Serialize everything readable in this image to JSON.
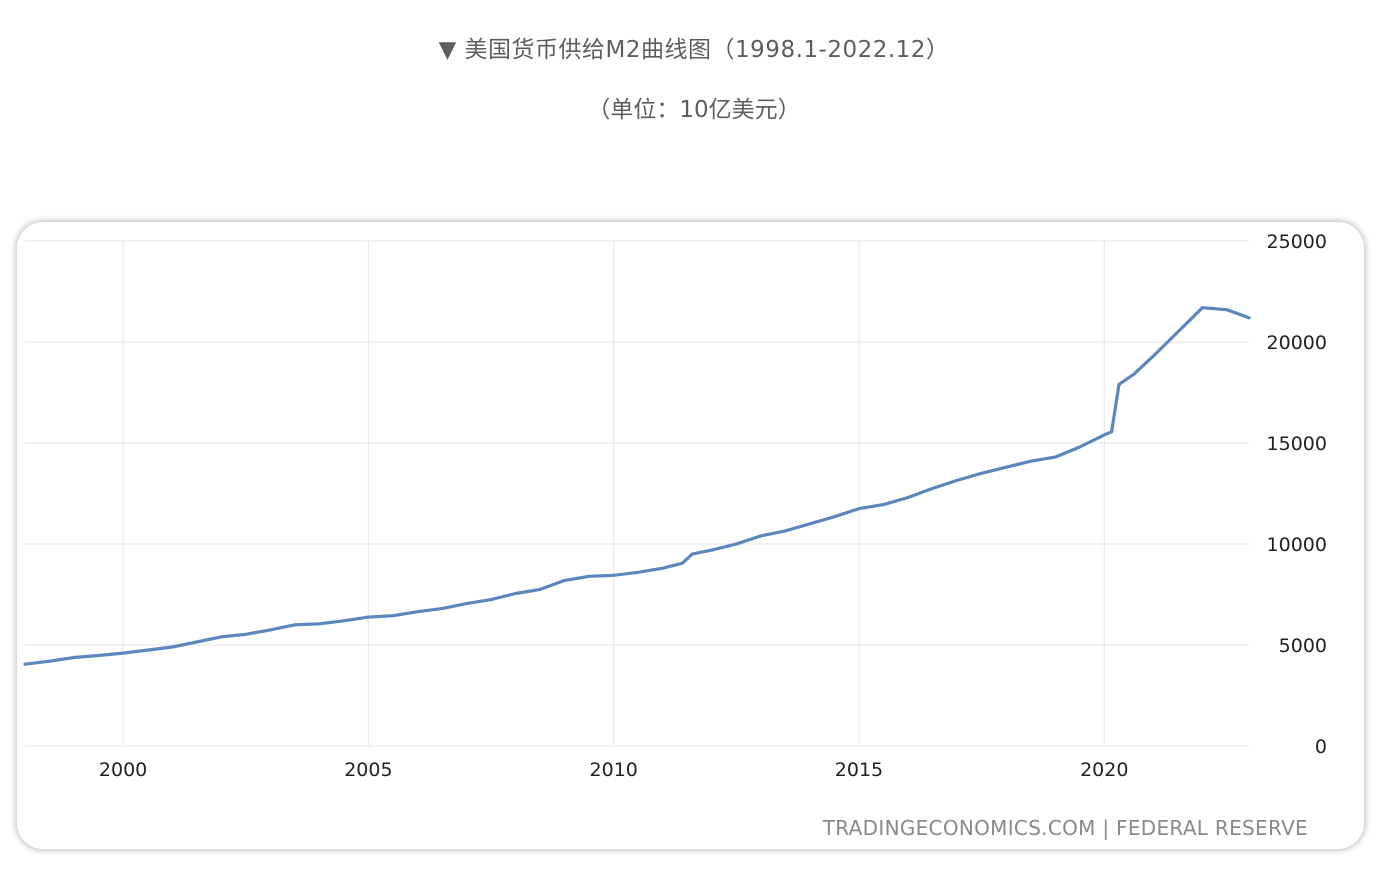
{
  "caption": {
    "title": "▼ 美国货币供给M2曲线图（1998.1-2022.12）",
    "unit": "（单位：10亿美元）"
  },
  "source_text": "TRADINGECONOMICS.COM | FEDERAL RESERVE",
  "colors": {
    "line": "#5b87bd",
    "grid": "#e9e9e9"
  },
  "chart_data": {
    "type": "line",
    "title": "",
    "xlabel": "",
    "ylabel": "",
    "xlim": [
      1998.0,
      2022.95
    ],
    "ylim": [
      0,
      25000
    ],
    "x_ticks": [
      2000,
      2005,
      2010,
      2015,
      2020
    ],
    "y_ticks": [
      0,
      5000,
      10000,
      15000,
      20000,
      25000
    ],
    "grid": true,
    "legend": "none",
    "series": [
      {
        "points": [
          [
            1998.0,
            4050
          ],
          [
            1998.5,
            4200
          ],
          [
            1999.0,
            4380
          ],
          [
            1999.5,
            4480
          ],
          [
            2000.0,
            4600
          ],
          [
            2000.5,
            4750
          ],
          [
            2001.0,
            4900
          ],
          [
            2001.5,
            5150
          ],
          [
            2002.0,
            5400
          ],
          [
            2002.5,
            5530
          ],
          [
            2003.0,
            5750
          ],
          [
            2003.5,
            6000
          ],
          [
            2004.0,
            6050
          ],
          [
            2004.5,
            6200
          ],
          [
            2005.0,
            6380
          ],
          [
            2005.5,
            6450
          ],
          [
            2006.0,
            6650
          ],
          [
            2006.5,
            6800
          ],
          [
            2007.0,
            7050
          ],
          [
            2007.5,
            7250
          ],
          [
            2008.0,
            7550
          ],
          [
            2008.5,
            7750
          ],
          [
            2009.0,
            8200
          ],
          [
            2009.5,
            8400
          ],
          [
            2010.0,
            8450
          ],
          [
            2010.5,
            8600
          ],
          [
            2011.0,
            8800
          ],
          [
            2011.4,
            9050
          ],
          [
            2011.6,
            9500
          ],
          [
            2012.0,
            9700
          ],
          [
            2012.5,
            10000
          ],
          [
            2013.0,
            10400
          ],
          [
            2013.5,
            10650
          ],
          [
            2014.0,
            11000
          ],
          [
            2014.5,
            11350
          ],
          [
            2015.0,
            11750
          ],
          [
            2015.5,
            11950
          ],
          [
            2016.0,
            12300
          ],
          [
            2016.5,
            12750
          ],
          [
            2017.0,
            13150
          ],
          [
            2017.5,
            13500
          ],
          [
            2018.0,
            13800
          ],
          [
            2018.5,
            14100
          ],
          [
            2019.0,
            14300
          ],
          [
            2019.5,
            14800
          ],
          [
            2020.0,
            15400
          ],
          [
            2020.15,
            15550
          ],
          [
            2020.3,
            17900
          ],
          [
            2020.6,
            18400
          ],
          [
            2021.0,
            19300
          ],
          [
            2021.5,
            20500
          ],
          [
            2022.0,
            21700
          ],
          [
            2022.5,
            21600
          ],
          [
            2022.95,
            21200
          ]
        ]
      }
    ]
  }
}
